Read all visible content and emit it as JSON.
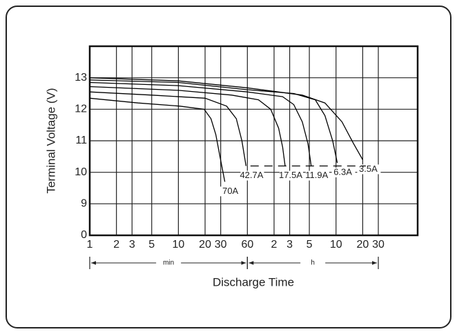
{
  "chart_data": {
    "type": "line",
    "x_label": "Discharge Time",
    "y_label": "Terminal Voltage (V)",
    "x_unit_labels": [
      "min",
      "h"
    ],
    "log_x": true,
    "y_axis_break": true,
    "grid": true,
    "xlim": [
      1,
      5000
    ],
    "xticks": [
      1,
      2,
      3,
      5,
      10,
      20,
      30,
      60,
      {
        "value": 120,
        "label": "2"
      },
      {
        "value": 180,
        "label": "3"
      },
      {
        "value": 300,
        "label": "5"
      },
      {
        "value": 600,
        "label": "10"
      },
      {
        "value": 1200,
        "label": "20"
      },
      {
        "value": 1800,
        "label": "30"
      }
    ],
    "ylim": [
      0,
      14
    ],
    "yticks": [
      0,
      9,
      10,
      11,
      12,
      13
    ],
    "series": [
      {
        "name": "70A",
        "color": "#000000",
        "x": [
          1,
          3.5,
          10.4,
          19.5,
          23.3,
          26.4,
          29.4,
          33.4
        ],
        "values": [
          12.35,
          12.2,
          12.1,
          12.0,
          11.7,
          11.2,
          10.5,
          9.7
        ]
      },
      {
        "name": "42.7A",
        "color": "#000000",
        "x": [
          1,
          5,
          20,
          35,
          45,
          52,
          58
        ],
        "values": [
          12.55,
          12.45,
          12.35,
          12.1,
          11.7,
          11.0,
          10.2
        ]
      },
      {
        "name": "17.5A",
        "color": "#000000",
        "x": [
          1,
          10,
          40,
          80,
          110,
          135,
          150,
          160
        ],
        "values": [
          12.72,
          12.6,
          12.45,
          12.3,
          12.0,
          11.4,
          10.8,
          10.2
        ]
      },
      {
        "name": "11.9A",
        "color": "#000000",
        "x": [
          1,
          10,
          60,
          150,
          200,
          250,
          290,
          315
        ],
        "values": [
          12.85,
          12.75,
          12.55,
          12.4,
          12.15,
          11.6,
          10.9,
          10.2
        ]
      },
      {
        "name": "6.3A",
        "color": "#000000",
        "x": [
          1,
          10,
          60,
          200,
          350,
          450,
          550,
          620
        ],
        "values": [
          12.93,
          12.85,
          12.62,
          12.5,
          12.3,
          11.8,
          11.0,
          10.3
        ]
      },
      {
        "name": "3.5A",
        "color": "#000000",
        "x": [
          1,
          10,
          60,
          250,
          450,
          700,
          950,
          1200
        ],
        "values": [
          13.0,
          12.9,
          12.68,
          12.45,
          12.2,
          11.6,
          10.9,
          10.4
        ]
      },
      {
        "color": "#000000",
        "dashed": true,
        "x": [
          65,
          1300
        ],
        "values": [
          10.2,
          10.2
        ]
      }
    ]
  }
}
